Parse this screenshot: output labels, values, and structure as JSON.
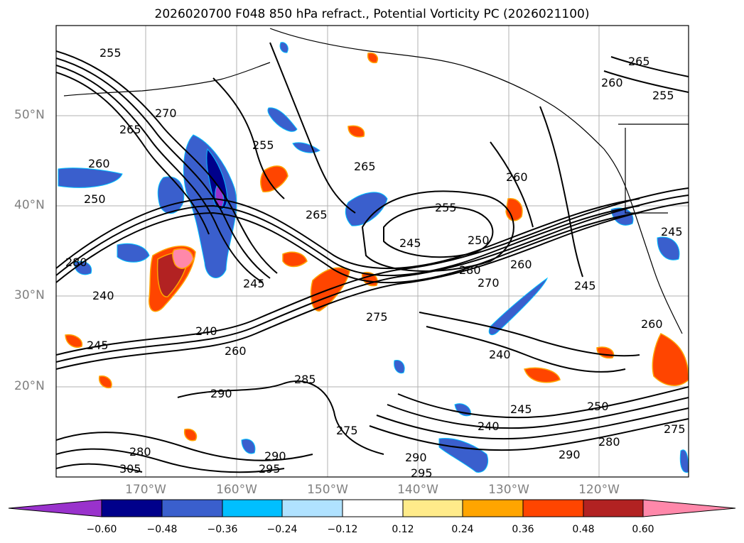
{
  "title": "2026020700 F048 850 hPa refract., Potential Vorticity PC (2026021100)",
  "lat_labels": [
    "50°N",
    "40°N",
    "30°N",
    "20°N"
  ],
  "lon_labels": [
    "170°W",
    "160°W",
    "150°W",
    "140°W",
    "130°W",
    "120°W"
  ],
  "colorbar": {
    "ticks": [
      "−0.60",
      "−0.48",
      "−0.36",
      "−0.24",
      "−0.12",
      "0.12",
      "0.24",
      "0.36",
      "0.48",
      "0.60"
    ],
    "colors": [
      "#9932cc",
      "#00008b",
      "#3a5fcd",
      "#00bfff",
      "#b0e2ff",
      "#ffffff",
      "#ffeb8a",
      "#ffa500",
      "#ff4500",
      "#b22222",
      "#ff88aa"
    ]
  },
  "contour_labels": [
    "255",
    "265",
    "260",
    "250",
    "280",
    "240",
    "245",
    "270",
    "275",
    "290",
    "285",
    "295",
    "305"
  ],
  "colors": {
    "contour": "#000000",
    "coast": "#000000",
    "grid": "#b0b0b0",
    "axis_label": "#808080"
  }
}
